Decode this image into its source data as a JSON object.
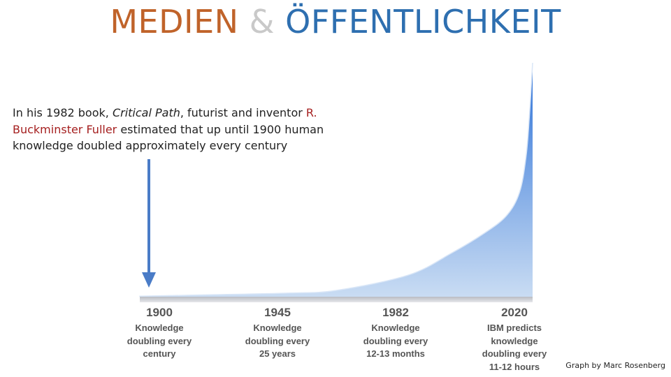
{
  "slide": {
    "title_part1": "MEDIEN",
    "title_amp": "&",
    "title_part2": "ÖFFENTLICHKEIT",
    "quote": {
      "t1": "In his 1982 book, ",
      "book": "Critical Path",
      "t2": ", futurist and inventor ",
      "name": "R. Buckminster Fuller",
      "t3": " estimated that up until 1900 human knowledge doubled approximately every century"
    },
    "credit": "Graph by Marc Rosenberg"
  },
  "chart_data": {
    "type": "area",
    "title": "",
    "xlabel": "",
    "ylabel": "",
    "categories": [
      "1900",
      "1945",
      "1982",
      "2020"
    ],
    "category_notes": [
      [
        "Knowledge",
        "doubling every",
        "century"
      ],
      [
        "Knowledge",
        "doubling every",
        "25 years"
      ],
      [
        "Knowledge",
        "doubling every",
        "12-13 months"
      ],
      [
        "IBM predicts",
        "knowledge",
        "doubling every",
        "11-12 hours"
      ]
    ],
    "x": [
      1900,
      1920,
      1945,
      1960,
      1982,
      1995,
      2005,
      2012,
      2016,
      2018,
      2019,
      2020
    ],
    "y": [
      0.3,
      1.0,
      2.0,
      3.5,
      12,
      24,
      35,
      45,
      58,
      78,
      100,
      130
    ],
    "xlim": [
      1900,
      2020
    ],
    "ylim": [
      0,
      130
    ],
    "grid": false,
    "fill_color_top": "#2f73d8",
    "fill_color_bottom": "#c9dcf3",
    "arrow_color": "#4a7cc7",
    "arrow_at_x": 1900
  }
}
